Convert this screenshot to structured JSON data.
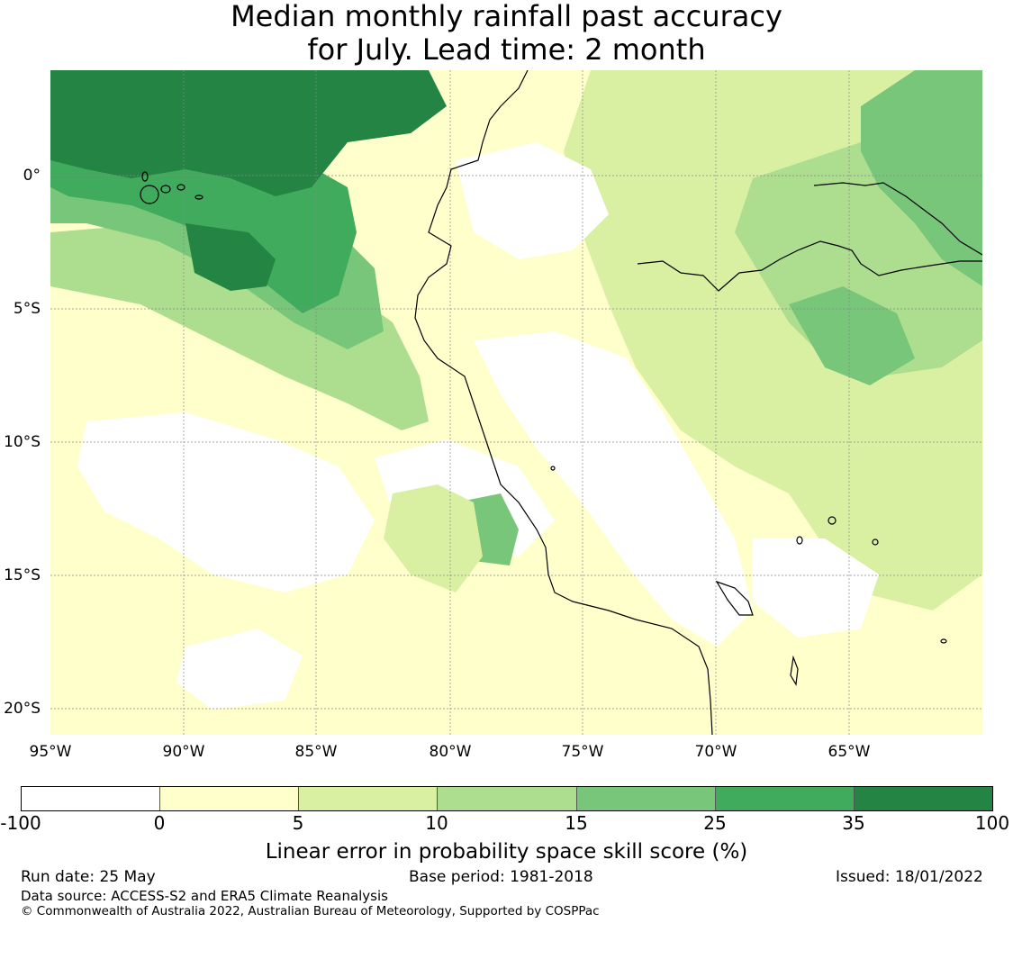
{
  "title": {
    "line1": "Median monthly rainfall past accuracy",
    "line2": "for July. Lead time: 2 month"
  },
  "map": {
    "lat_labels": [
      "0°",
      "5°S",
      "10°S",
      "15°S",
      "20°S"
    ],
    "lon_labels": [
      "95°W",
      "90°W",
      "85°W",
      "80°W",
      "75°W",
      "70°W",
      "65°W"
    ],
    "region_values": {
      "northwest_ocean": "35-100",
      "west_ocean_band": "25-35",
      "coastal_band": "10-15",
      "southwest_ocean": "-100-0",
      "central_south_ocean": "0-5",
      "amazon_north": "10-25",
      "andes_south": "0-5",
      "east_lowlands": "5-15"
    }
  },
  "colorbar": {
    "bins": [
      {
        "from": "-100",
        "to": "0",
        "color": "#ffffff"
      },
      {
        "from": "0",
        "to": "5",
        "color": "#ffffcc"
      },
      {
        "from": "5",
        "to": "10",
        "color": "#d9f0a3"
      },
      {
        "from": "10",
        "to": "15",
        "color": "#addd8e"
      },
      {
        "from": "15",
        "to": "25",
        "color": "#78c679"
      },
      {
        "from": "25",
        "to": "35",
        "color": "#41ab5d"
      },
      {
        "from": "35",
        "to": "100",
        "color": "#238443"
      }
    ],
    "ticks": [
      "-100",
      "0",
      "5",
      "10",
      "15",
      "25",
      "35",
      "100"
    ],
    "label": "Linear error in probability space skill score (%)"
  },
  "footer": {
    "run_date": "Run date: 25 May",
    "base_period": "Base period: 1981-2018",
    "issued": "Issued: 18/01/2022",
    "data_source": "Data source: ACCESS-S2 and ERA5 Climate Reanalysis",
    "copyright": "© Commonwealth of Australia 2022, Australian Bureau of Meteorology, Supported by COSPPac"
  }
}
